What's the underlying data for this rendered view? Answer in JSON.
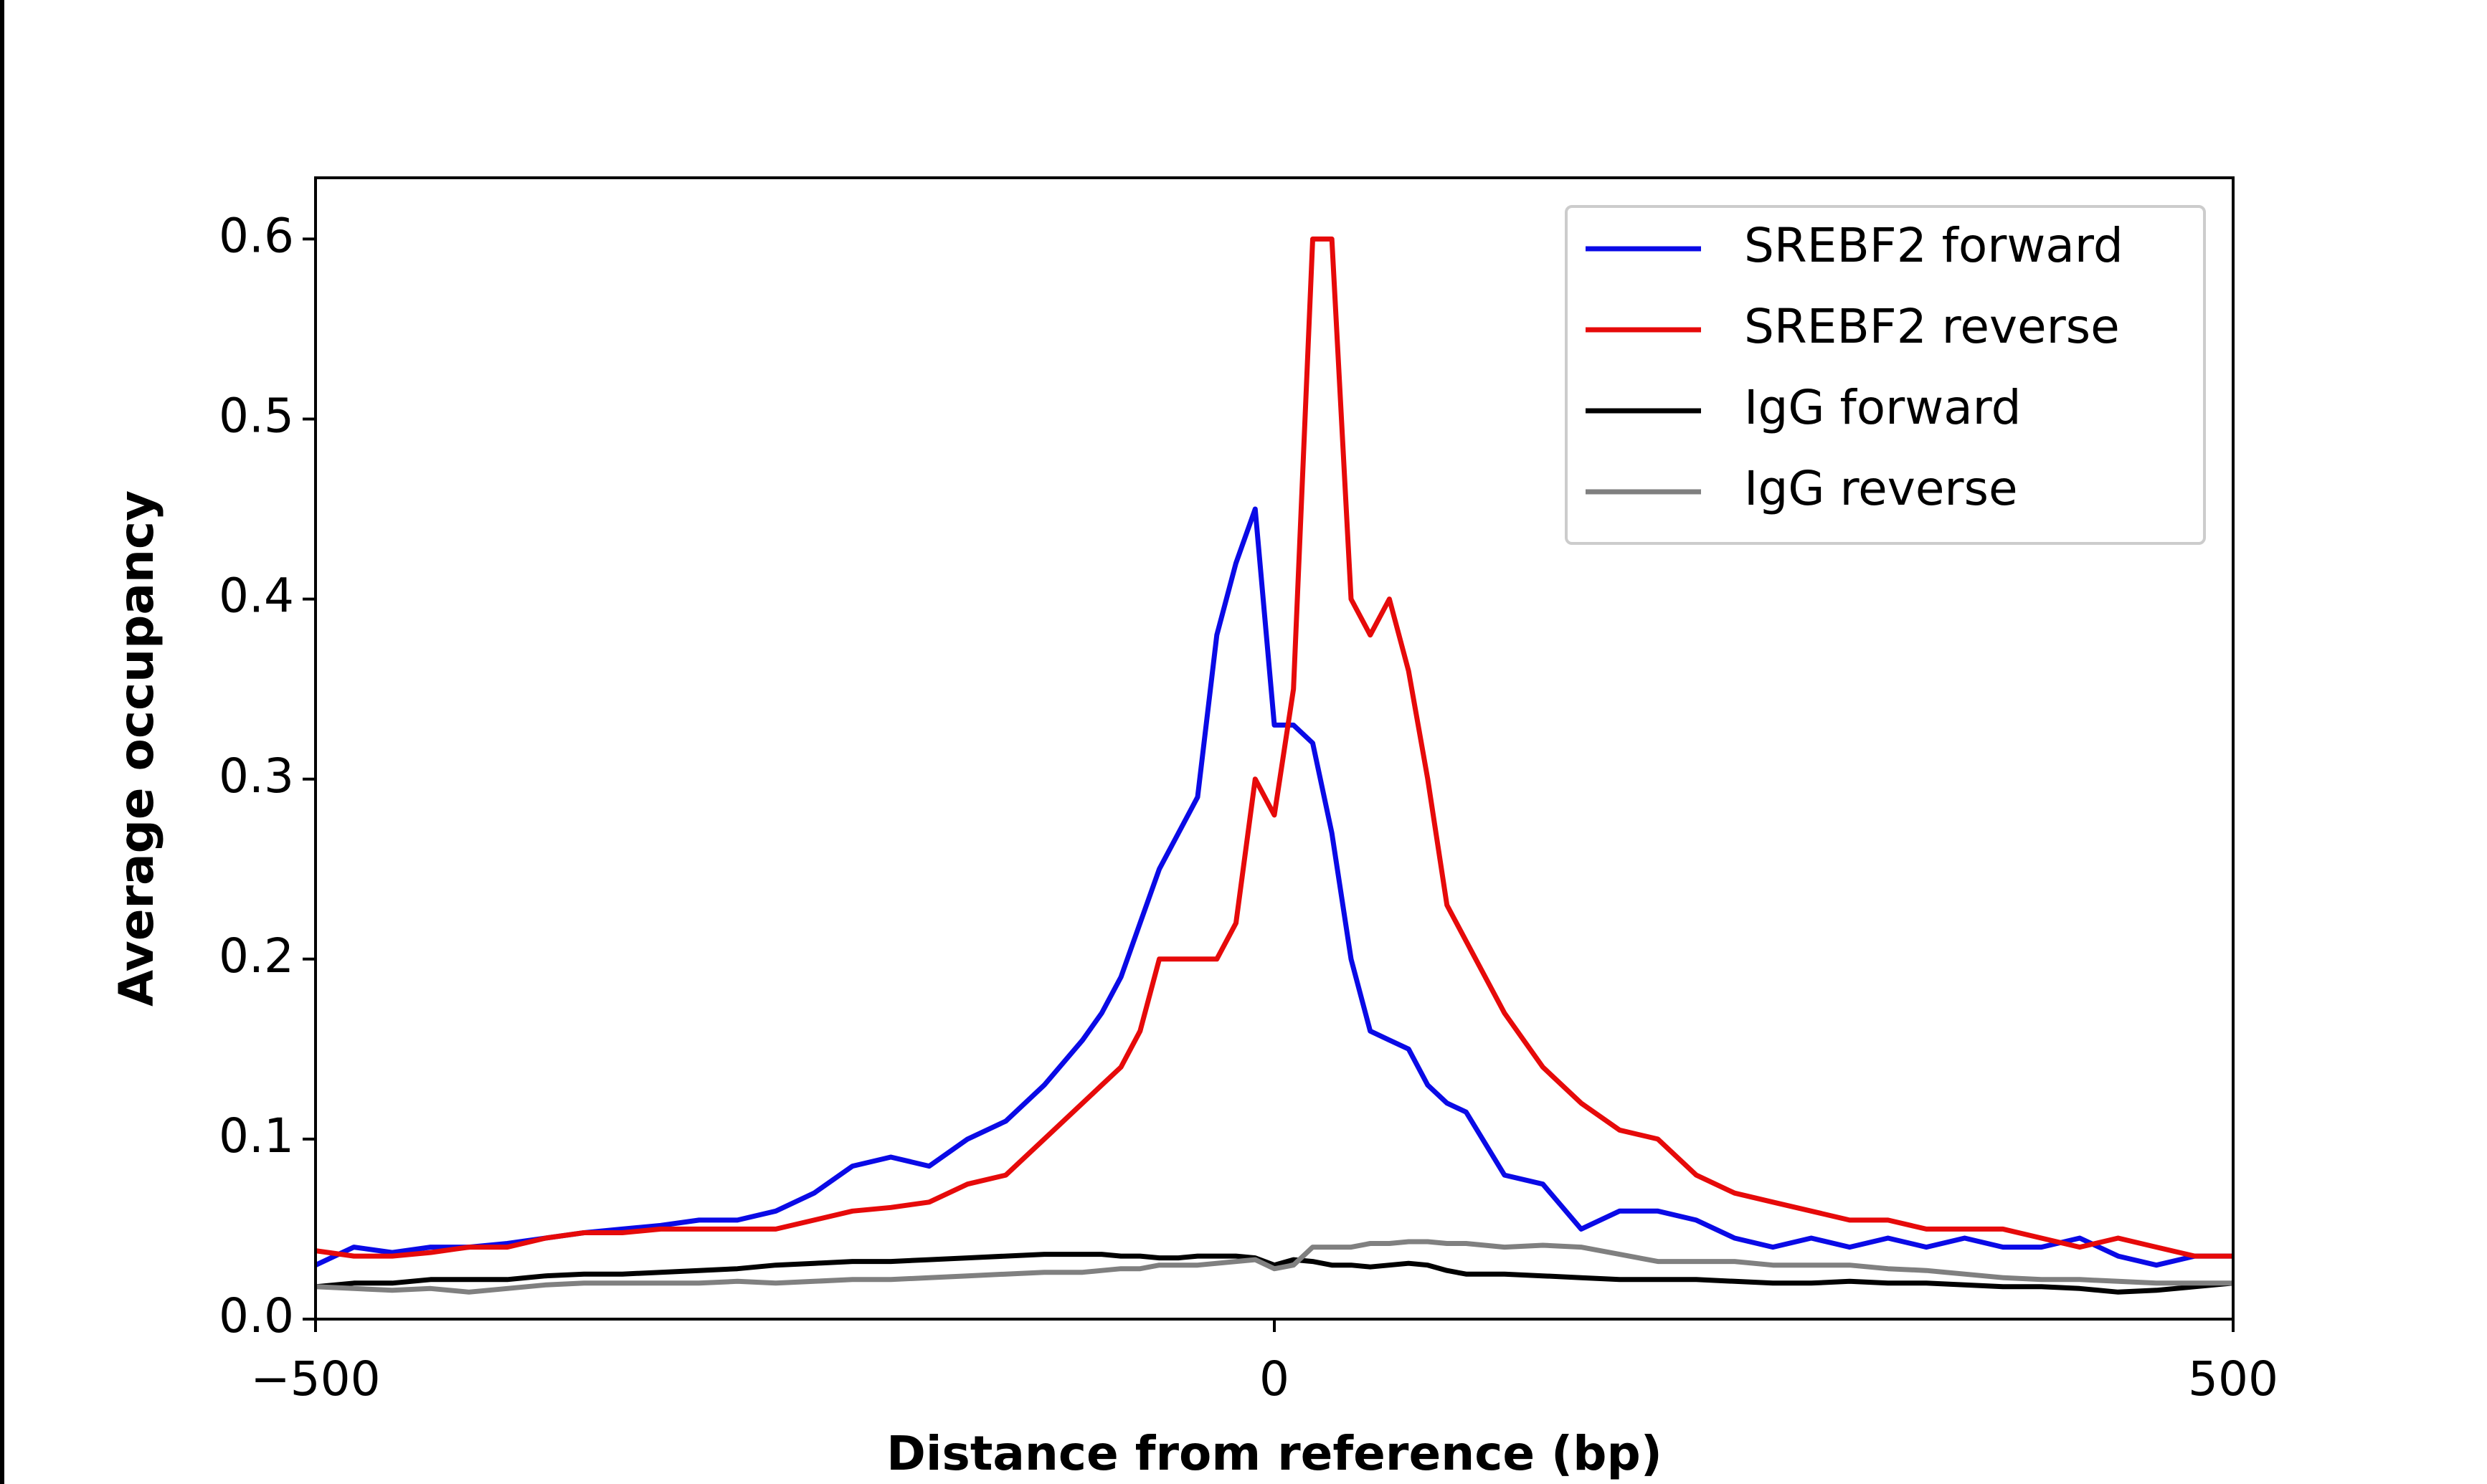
{
  "chart_data": {
    "type": "line",
    "xlabel": "Distance from reference (bp)",
    "ylabel": "Average occupancy",
    "xlim": [
      -500,
      500
    ],
    "ylim": [
      0,
      0.634
    ],
    "xticks": [
      {
        "value": -500,
        "label": "−500"
      },
      0,
      500
    ],
    "yticks": [
      {
        "value": 0,
        "label": "0.0"
      },
      0.1,
      0.2,
      0.3,
      0.4,
      0.5,
      0.6
    ],
    "legend": "upper right",
    "x": [
      -500,
      -480,
      -460,
      -440,
      -420,
      -400,
      -380,
      -360,
      -340,
      -320,
      -300,
      -280,
      -260,
      -240,
      -220,
      -200,
      -180,
      -160,
      -140,
      -120,
      -100,
      -90,
      -80,
      -70,
      -60,
      -50,
      -40,
      -30,
      -20,
      -10,
      0,
      10,
      20,
      30,
      40,
      50,
      60,
      70,
      80,
      90,
      100,
      120,
      140,
      160,
      180,
      200,
      220,
      240,
      260,
      280,
      300,
      320,
      340,
      360,
      380,
      400,
      420,
      440,
      460,
      480,
      500
    ],
    "series": [
      {
        "name": "SREBF2 forward",
        "color": "#0a0ae6",
        "values": [
          0.03,
          0.04,
          0.037,
          0.04,
          0.04,
          0.042,
          0.045,
          0.048,
          0.05,
          0.052,
          0.055,
          0.055,
          0.06,
          0.07,
          0.085,
          0.09,
          0.085,
          0.1,
          0.11,
          0.13,
          0.155,
          0.17,
          0.19,
          0.22,
          0.25,
          0.27,
          0.29,
          0.38,
          0.42,
          0.45,
          0.33,
          0.33,
          0.32,
          0.27,
          0.2,
          0.16,
          0.155,
          0.15,
          0.13,
          0.12,
          0.115,
          0.08,
          0.075,
          0.05,
          0.06,
          0.06,
          0.055,
          0.045,
          0.04,
          0.045,
          0.04,
          0.045,
          0.04,
          0.045,
          0.04,
          0.04,
          0.045,
          0.035,
          0.03,
          0.035,
          0.035
        ]
      },
      {
        "name": "SREBF2 reverse",
        "color": "#e60a0a",
        "values": [
          0.038,
          0.035,
          0.035,
          0.037,
          0.04,
          0.04,
          0.045,
          0.048,
          0.048,
          0.05,
          0.05,
          0.05,
          0.05,
          0.055,
          0.06,
          0.062,
          0.065,
          0.075,
          0.08,
          0.1,
          0.12,
          0.13,
          0.14,
          0.16,
          0.2,
          0.2,
          0.2,
          0.2,
          0.22,
          0.3,
          0.28,
          0.35,
          0.6,
          0.6,
          0.4,
          0.38,
          0.4,
          0.36,
          0.3,
          0.23,
          0.21,
          0.17,
          0.14,
          0.12,
          0.105,
          0.1,
          0.08,
          0.07,
          0.065,
          0.06,
          0.055,
          0.055,
          0.05,
          0.05,
          0.05,
          0.045,
          0.04,
          0.045,
          0.04,
          0.035,
          0.035
        ]
      },
      {
        "name": "IgG forward",
        "color": "#000000",
        "values": [
          0.018,
          0.02,
          0.02,
          0.022,
          0.022,
          0.022,
          0.024,
          0.025,
          0.025,
          0.026,
          0.027,
          0.028,
          0.03,
          0.031,
          0.032,
          0.032,
          0.033,
          0.034,
          0.035,
          0.036,
          0.036,
          0.036,
          0.035,
          0.035,
          0.034,
          0.034,
          0.035,
          0.035,
          0.035,
          0.034,
          0.03,
          0.033,
          0.032,
          0.03,
          0.03,
          0.029,
          0.03,
          0.031,
          0.03,
          0.027,
          0.025,
          0.025,
          0.024,
          0.023,
          0.022,
          0.022,
          0.022,
          0.021,
          0.02,
          0.02,
          0.021,
          0.02,
          0.02,
          0.019,
          0.018,
          0.018,
          0.017,
          0.015,
          0.016,
          0.018,
          0.02
        ]
      },
      {
        "name": "IgG reverse",
        "color": "#808080",
        "values": [
          0.018,
          0.017,
          0.016,
          0.017,
          0.015,
          0.017,
          0.019,
          0.02,
          0.02,
          0.02,
          0.02,
          0.021,
          0.02,
          0.021,
          0.022,
          0.022,
          0.023,
          0.024,
          0.025,
          0.026,
          0.026,
          0.027,
          0.028,
          0.028,
          0.03,
          0.03,
          0.03,
          0.031,
          0.032,
          0.033,
          0.028,
          0.03,
          0.04,
          0.04,
          0.04,
          0.042,
          0.042,
          0.043,
          0.043,
          0.042,
          0.042,
          0.04,
          0.041,
          0.04,
          0.036,
          0.032,
          0.032,
          0.032,
          0.03,
          0.03,
          0.03,
          0.028,
          0.027,
          0.025,
          0.023,
          0.022,
          0.022,
          0.021,
          0.02,
          0.02,
          0.02
        ]
      }
    ]
  }
}
